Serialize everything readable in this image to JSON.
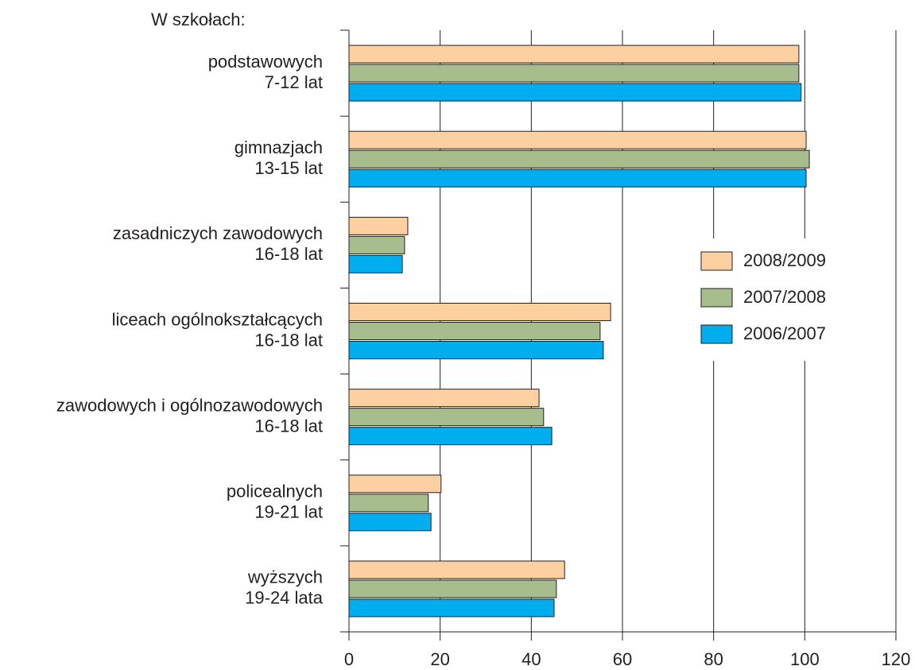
{
  "chart_data": {
    "type": "bar",
    "orientation": "horizontal",
    "title": "W szkołach:",
    "categories": [
      [
        "podstawowych",
        "7-12 lat"
      ],
      [
        "gimnazjach",
        "13-15 lat"
      ],
      [
        "zasadniczych zawodowych",
        "16-18 lat"
      ],
      [
        "liceach ogólnokształcących",
        "16-18 lat"
      ],
      [
        "zawodowych i ogólnozawodowych",
        "16-18 lat"
      ],
      [
        "policealnych",
        "19-21 lat"
      ],
      [
        "wyższych",
        "19-24 lata"
      ]
    ],
    "series": [
      {
        "name": "2008/2009",
        "color": "#fdd0a2",
        "values": [
          98.7,
          100.3,
          12.9,
          57.4,
          41.7,
          20.2,
          47.3
        ]
      },
      {
        "name": "2007/2008",
        "color": "#a8bd8e",
        "values": [
          98.7,
          101,
          12.2,
          55.1,
          42.7,
          17.4,
          45.5
        ]
      },
      {
        "name": "2006/2007",
        "color": "#00aeef",
        "values": [
          99.2,
          100.3,
          11.7,
          55.8,
          44.5,
          18.0,
          45.0
        ]
      }
    ],
    "xlim": [
      0,
      120
    ],
    "xticks": [
      0,
      20,
      40,
      60,
      80,
      100,
      120
    ],
    "grid": true,
    "legend": "right"
  }
}
